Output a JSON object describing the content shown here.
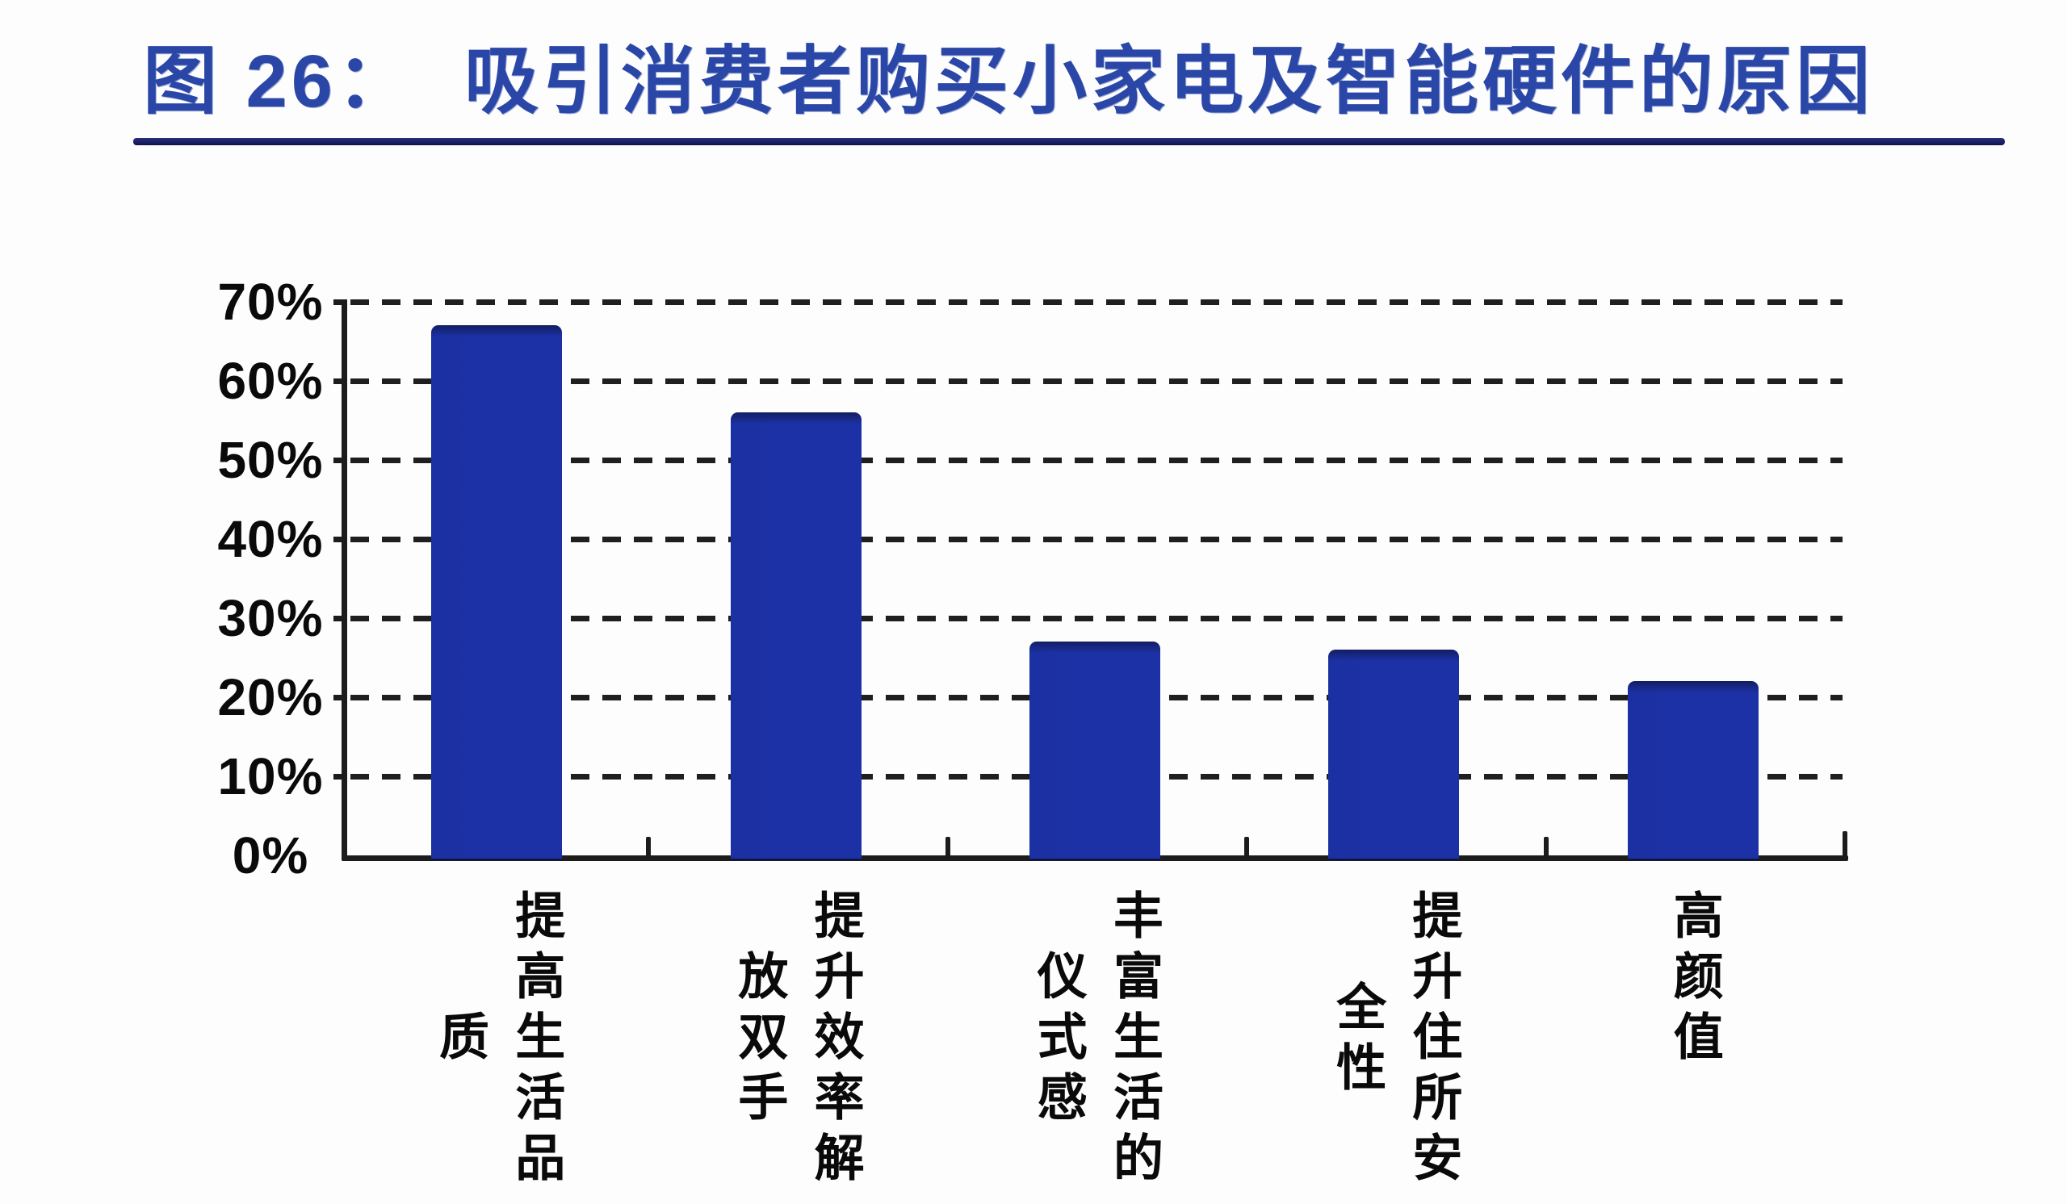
{
  "figure": {
    "title": "图 26：  吸引消费者购买小家电及智能硬件的原因"
  },
  "colors": {
    "title_blue": "#2a47a8",
    "rule_navy": "#1b2068",
    "bar_blue": "#1c31a5",
    "bar_top_edge": "#121d5f",
    "axis_black": "#1c1c1c",
    "text_black": "#0a0a0a",
    "background": "#fdfdfd"
  },
  "chart_data": {
    "type": "bar",
    "title": "吸引消费者购买小家电及智能硬件的原因",
    "categories": [
      "提高生活品质",
      "提升效率解放双手",
      "丰富生活的仪式感",
      "提升住所安全性",
      "高颜值"
    ],
    "category_lines": [
      [
        "提高生活品",
        "质"
      ],
      [
        "提升效率解",
        "放双手"
      ],
      [
        "丰富生活的",
        "仪式感"
      ],
      [
        "提升住所安",
        "全性"
      ],
      [
        "高颜值"
      ]
    ],
    "values": [
      67,
      56,
      27,
      26,
      22
    ],
    "unit": "%",
    "xlabel": "",
    "ylabel": "",
    "ylim": [
      0,
      70
    ],
    "yticks": [
      "70%",
      "60%",
      "50%",
      "40%",
      "30%",
      "20%",
      "10%",
      "0%"
    ],
    "ytick_values": [
      70,
      60,
      50,
      40,
      30,
      20,
      10,
      0
    ],
    "grid": "horizontal-dashed",
    "legend": "none"
  }
}
